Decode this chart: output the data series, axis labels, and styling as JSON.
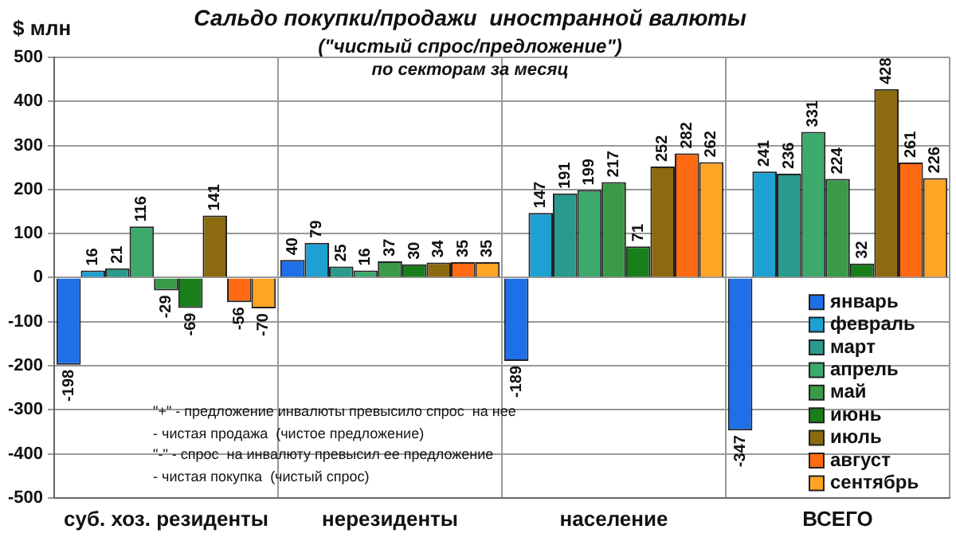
{
  "chart_data": {
    "type": "bar",
    "title": "Сальдо покупки/продажи  иностранной валюты",
    "subtitle": "(\"чистый спрос/предложение\")",
    "ylabel": "$ млн",
    "categories": [
      "суб. хоз. резиденты",
      "нерезиденты",
      "население",
      "ВСЕГО"
    ],
    "series": [
      {
        "name": "январь",
        "color": "#1f6fe8",
        "values": [
          -198,
          40,
          -189,
          -347
        ]
      },
      {
        "name": "февраль",
        "color": "#1ea0d2",
        "values": [
          16,
          79,
          147,
          241
        ]
      },
      {
        "name": "март",
        "color": "#2a9a8c",
        "values": [
          21,
          25,
          191,
          236
        ]
      },
      {
        "name": "апрель",
        "color": "#3caa6c",
        "values": [
          116,
          16,
          199,
          331
        ]
      },
      {
        "name": "май",
        "color": "#3a9a48",
        "values": [
          -29,
          37,
          217,
          224
        ]
      },
      {
        "name": "июнь",
        "color": "#1a7e1a",
        "values": [
          -69,
          30,
          71,
          32
        ]
      },
      {
        "name": "июль",
        "color": "#8c6a10",
        "values": [
          141,
          34,
          252,
          428
        ]
      },
      {
        "name": "август",
        "color": "#ff6a12",
        "values": [
          -56,
          35,
          282,
          261
        ]
      },
      {
        "name": "сентябрь",
        "color": "#ffa424",
        "values": [
          -70,
          35,
          262,
          226
        ]
      }
    ],
    "ylim": [
      -500,
      500
    ],
    "yticks": [
      -500,
      -400,
      -300,
      -200,
      -100,
      0,
      100,
      200,
      300,
      400,
      500
    ],
    "grid": true,
    "legend": "bottom right",
    "data_labels": true,
    "annotations": [
      "по секторам за месяц",
      "\"+\" - предложение инвалюты превысило спрос  на нее\n- чистая продажа  (чистое предложение)",
      "\"-\" - спрос  на инвалюту превысил ее предложение\n- чистая покупка  (чистый спрос)"
    ]
  }
}
